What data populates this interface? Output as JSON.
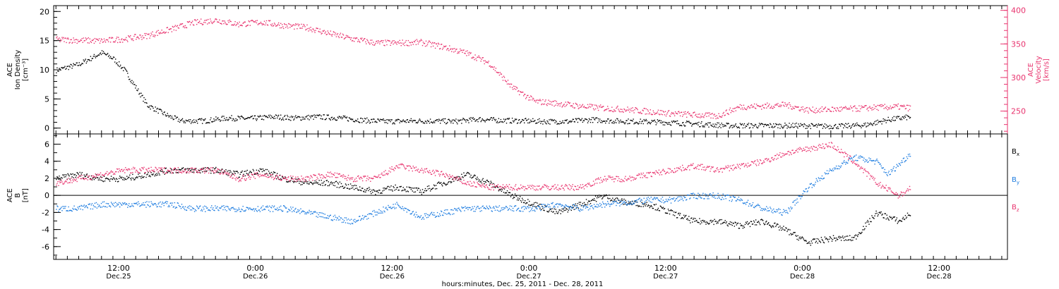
{
  "colors": {
    "axis": "#000000",
    "black": "#000000",
    "pink": "#e8336e",
    "blue": "#1f7de0"
  },
  "x_axis": {
    "ticks": [
      {
        "t": 13.5,
        "time": "12:00",
        "date": "Dec.25"
      },
      {
        "t": 25.5,
        "time": "0:00",
        "date": "Dec.26"
      },
      {
        "t": 37.5,
        "time": "12:00",
        "date": "Dec.26"
      },
      {
        "t": 49.5,
        "time": "0:00",
        "date": "Dec.27"
      },
      {
        "t": 61.5,
        "time": "12:00",
        "date": "Dec.27"
      },
      {
        "t": 73.5,
        "time": "0:00",
        "date": "Dec.28"
      },
      {
        "t": 85.5,
        "time": "12:00",
        "date": "Dec.28"
      }
    ],
    "label": "hours:minutes, Dec. 25, 2011 - Dec. 28, 2011",
    "range": [
      7.8,
      91.5
    ]
  },
  "chart_data": [
    {
      "type": "scatter",
      "left_axis": {
        "label_lines": [
          "ACE",
          "Ion Density",
          "[cm⁻³]"
        ],
        "ticks": [
          0,
          5,
          10,
          15,
          20
        ],
        "ylim": [
          -1,
          21
        ]
      },
      "right_axis": {
        "label_lines": [
          "ACE",
          "Velocity",
          "[km/s]"
        ],
        "ticks": [
          250,
          300,
          350,
          400
        ],
        "ylim": [
          216,
          407
        ]
      },
      "series": [
        {
          "color_key": "black",
          "axis": "left",
          "points": [
            [
              8,
              10
            ],
            [
              10,
              11
            ],
            [
              12,
              13
            ],
            [
              13,
              12
            ],
            [
              14,
              10
            ],
            [
              15,
              7
            ],
            [
              16,
              4
            ],
            [
              17,
              3
            ],
            [
              18,
              2
            ],
            [
              19,
              1.3
            ],
            [
              21,
              1.3
            ],
            [
              23,
              1.8
            ],
            [
              25,
              1.7
            ],
            [
              27,
              2
            ],
            [
              29,
              1.8
            ],
            [
              31,
              2
            ],
            [
              33,
              1.8
            ],
            [
              35,
              1.4
            ],
            [
              37,
              1.2
            ],
            [
              39,
              1.3
            ],
            [
              41,
              1.3
            ],
            [
              43,
              1.2
            ],
            [
              45,
              1.6
            ],
            [
              47,
              1.4
            ],
            [
              49,
              1.3
            ],
            [
              51,
              1.2
            ],
            [
              53,
              1.2
            ],
            [
              55,
              1.5
            ],
            [
              57,
              1.3
            ],
            [
              59,
              1.2
            ],
            [
              61,
              1.1
            ],
            [
              63,
              0.9
            ],
            [
              65,
              0.7
            ],
            [
              67,
              0.5
            ],
            [
              69,
              0.5
            ],
            [
              71,
              0.5
            ],
            [
              73,
              0.5
            ],
            [
              75,
              0.4
            ],
            [
              77,
              0.4
            ],
            [
              79,
              0.6
            ],
            [
              81,
              1.5
            ],
            [
              83,
              2
            ]
          ]
        },
        {
          "color_key": "pink",
          "axis": "right",
          "points": [
            [
              8,
              357
            ],
            [
              10,
              356
            ],
            [
              12,
              355
            ],
            [
              14,
              358
            ],
            [
              16,
              363
            ],
            [
              18,
              372
            ],
            [
              20,
              382
            ],
            [
              22,
              386
            ],
            [
              24,
              380
            ],
            [
              26,
              383
            ],
            [
              28,
              378
            ],
            [
              30,
              375
            ],
            [
              32,
              366
            ],
            [
              34,
              358
            ],
            [
              36,
              352
            ],
            [
              38,
              352
            ],
            [
              40,
              353
            ],
            [
              42,
              346
            ],
            [
              44,
              337
            ],
            [
              46,
              322
            ],
            [
              48,
              286
            ],
            [
              50,
              265
            ],
            [
              52,
              262
            ],
            [
              54,
              258
            ],
            [
              56,
              255
            ],
            [
              58,
              253
            ],
            [
              60,
              250
            ],
            [
              62,
              247
            ],
            [
              64,
              245
            ],
            [
              66,
              243
            ],
            [
              68,
              257
            ],
            [
              70,
              258
            ],
            [
              72,
              260
            ],
            [
              74,
              252
            ],
            [
              76,
              253
            ],
            [
              78,
              254
            ],
            [
              80,
              256
            ],
            [
              82,
              257
            ],
            [
              83,
              255
            ]
          ]
        }
      ]
    },
    {
      "type": "scatter",
      "left_axis": {
        "label_lines": [
          "ACE",
          "B",
          "[nT]"
        ],
        "ticks": [
          -6,
          -4,
          -2,
          0,
          2,
          4,
          6
        ],
        "ylim": [
          -7.5,
          7.2
        ]
      },
      "zero_line": 0,
      "legend": [
        {
          "text": "B",
          "sub": "x",
          "color_key": "black"
        },
        {
          "text": "B",
          "sub": "y",
          "color_key": "blue"
        },
        {
          "text": "B",
          "sub": "z",
          "color_key": "pink"
        }
      ],
      "series": [
        {
          "name": "Bx",
          "color_key": "black",
          "points": [
            [
              8,
              2
            ],
            [
              10,
              2.5
            ],
            [
              12,
              2
            ],
            [
              14,
              2
            ],
            [
              16,
              2.5
            ],
            [
              18,
              3
            ],
            [
              20,
              3
            ],
            [
              22,
              3
            ],
            [
              24,
              2.5
            ],
            [
              26,
              3
            ],
            [
              28,
              2
            ],
            [
              30,
              1.5
            ],
            [
              32,
              1.5
            ],
            [
              34,
              1
            ],
            [
              36,
              0.5
            ],
            [
              38,
              1
            ],
            [
              40,
              0.5
            ],
            [
              42,
              1.5
            ],
            [
              44,
              2.5
            ],
            [
              46,
              1.5
            ],
            [
              48,
              0
            ],
            [
              50,
              -1
            ],
            [
              52,
              -2
            ],
            [
              54,
              -1
            ],
            [
              56,
              0
            ],
            [
              58,
              -0.8
            ],
            [
              60,
              -1
            ],
            [
              62,
              -2
            ],
            [
              64,
              -3
            ],
            [
              66,
              -3
            ],
            [
              68,
              -3.5
            ],
            [
              70,
              -3
            ],
            [
              72,
              -4
            ],
            [
              74,
              -5.5
            ],
            [
              76,
              -5
            ],
            [
              78,
              -5
            ],
            [
              80,
              -2
            ],
            [
              82,
              -3
            ],
            [
              83,
              -2
            ]
          ]
        },
        {
          "name": "By",
          "color_key": "blue",
          "points": [
            [
              8,
              -1.5
            ],
            [
              10,
              -1.5
            ],
            [
              12,
              -1
            ],
            [
              14,
              -1
            ],
            [
              16,
              -1
            ],
            [
              18,
              -1
            ],
            [
              20,
              -1.5
            ],
            [
              22,
              -1.5
            ],
            [
              24,
              -1.5
            ],
            [
              26,
              -1.5
            ],
            [
              28,
              -1.5
            ],
            [
              30,
              -2
            ],
            [
              32,
              -2.5
            ],
            [
              34,
              -3
            ],
            [
              36,
              -2
            ],
            [
              38,
              -1
            ],
            [
              40,
              -2.5
            ],
            [
              42,
              -2
            ],
            [
              44,
              -1.5
            ],
            [
              46,
              -1.5
            ],
            [
              48,
              -1.5
            ],
            [
              50,
              -1.5
            ],
            [
              52,
              -1
            ],
            [
              54,
              -1.5
            ],
            [
              56,
              -1
            ],
            [
              58,
              -0.8
            ],
            [
              60,
              -0.5
            ],
            [
              62,
              -0.5
            ],
            [
              64,
              0
            ],
            [
              66,
              0
            ],
            [
              68,
              -0.5
            ],
            [
              70,
              -1.5
            ],
            [
              72,
              -2
            ],
            [
              74,
              1
            ],
            [
              76,
              3
            ],
            [
              78,
              4.5
            ],
            [
              80,
              4
            ],
            [
              81,
              2.5
            ],
            [
              83,
              5
            ]
          ]
        },
        {
          "name": "Bz",
          "color_key": "pink",
          "points": [
            [
              8,
              1.5
            ],
            [
              10,
              2
            ],
            [
              12,
              2.5
            ],
            [
              14,
              3
            ],
            [
              16,
              3
            ],
            [
              18,
              3
            ],
            [
              20,
              3
            ],
            [
              22,
              3
            ],
            [
              24,
              2
            ],
            [
              26,
              2.5
            ],
            [
              28,
              2
            ],
            [
              30,
              2
            ],
            [
              32,
              2.5
            ],
            [
              34,
              2
            ],
            [
              36,
              2
            ],
            [
              38,
              3.5
            ],
            [
              40,
              3
            ],
            [
              42,
              2.5
            ],
            [
              44,
              1.5
            ],
            [
              46,
              1
            ],
            [
              48,
              1
            ],
            [
              50,
              1
            ],
            [
              52,
              1
            ],
            [
              54,
              1
            ],
            [
              56,
              2
            ],
            [
              58,
              2
            ],
            [
              60,
              2.5
            ],
            [
              62,
              3
            ],
            [
              64,
              3.5
            ],
            [
              66,
              3
            ],
            [
              68,
              3.5
            ],
            [
              70,
              4
            ],
            [
              72,
              5
            ],
            [
              74,
              5.5
            ],
            [
              76,
              6
            ],
            [
              78,
              4
            ],
            [
              80,
              1.5
            ],
            [
              82,
              0
            ],
            [
              83,
              1
            ]
          ]
        }
      ]
    }
  ]
}
